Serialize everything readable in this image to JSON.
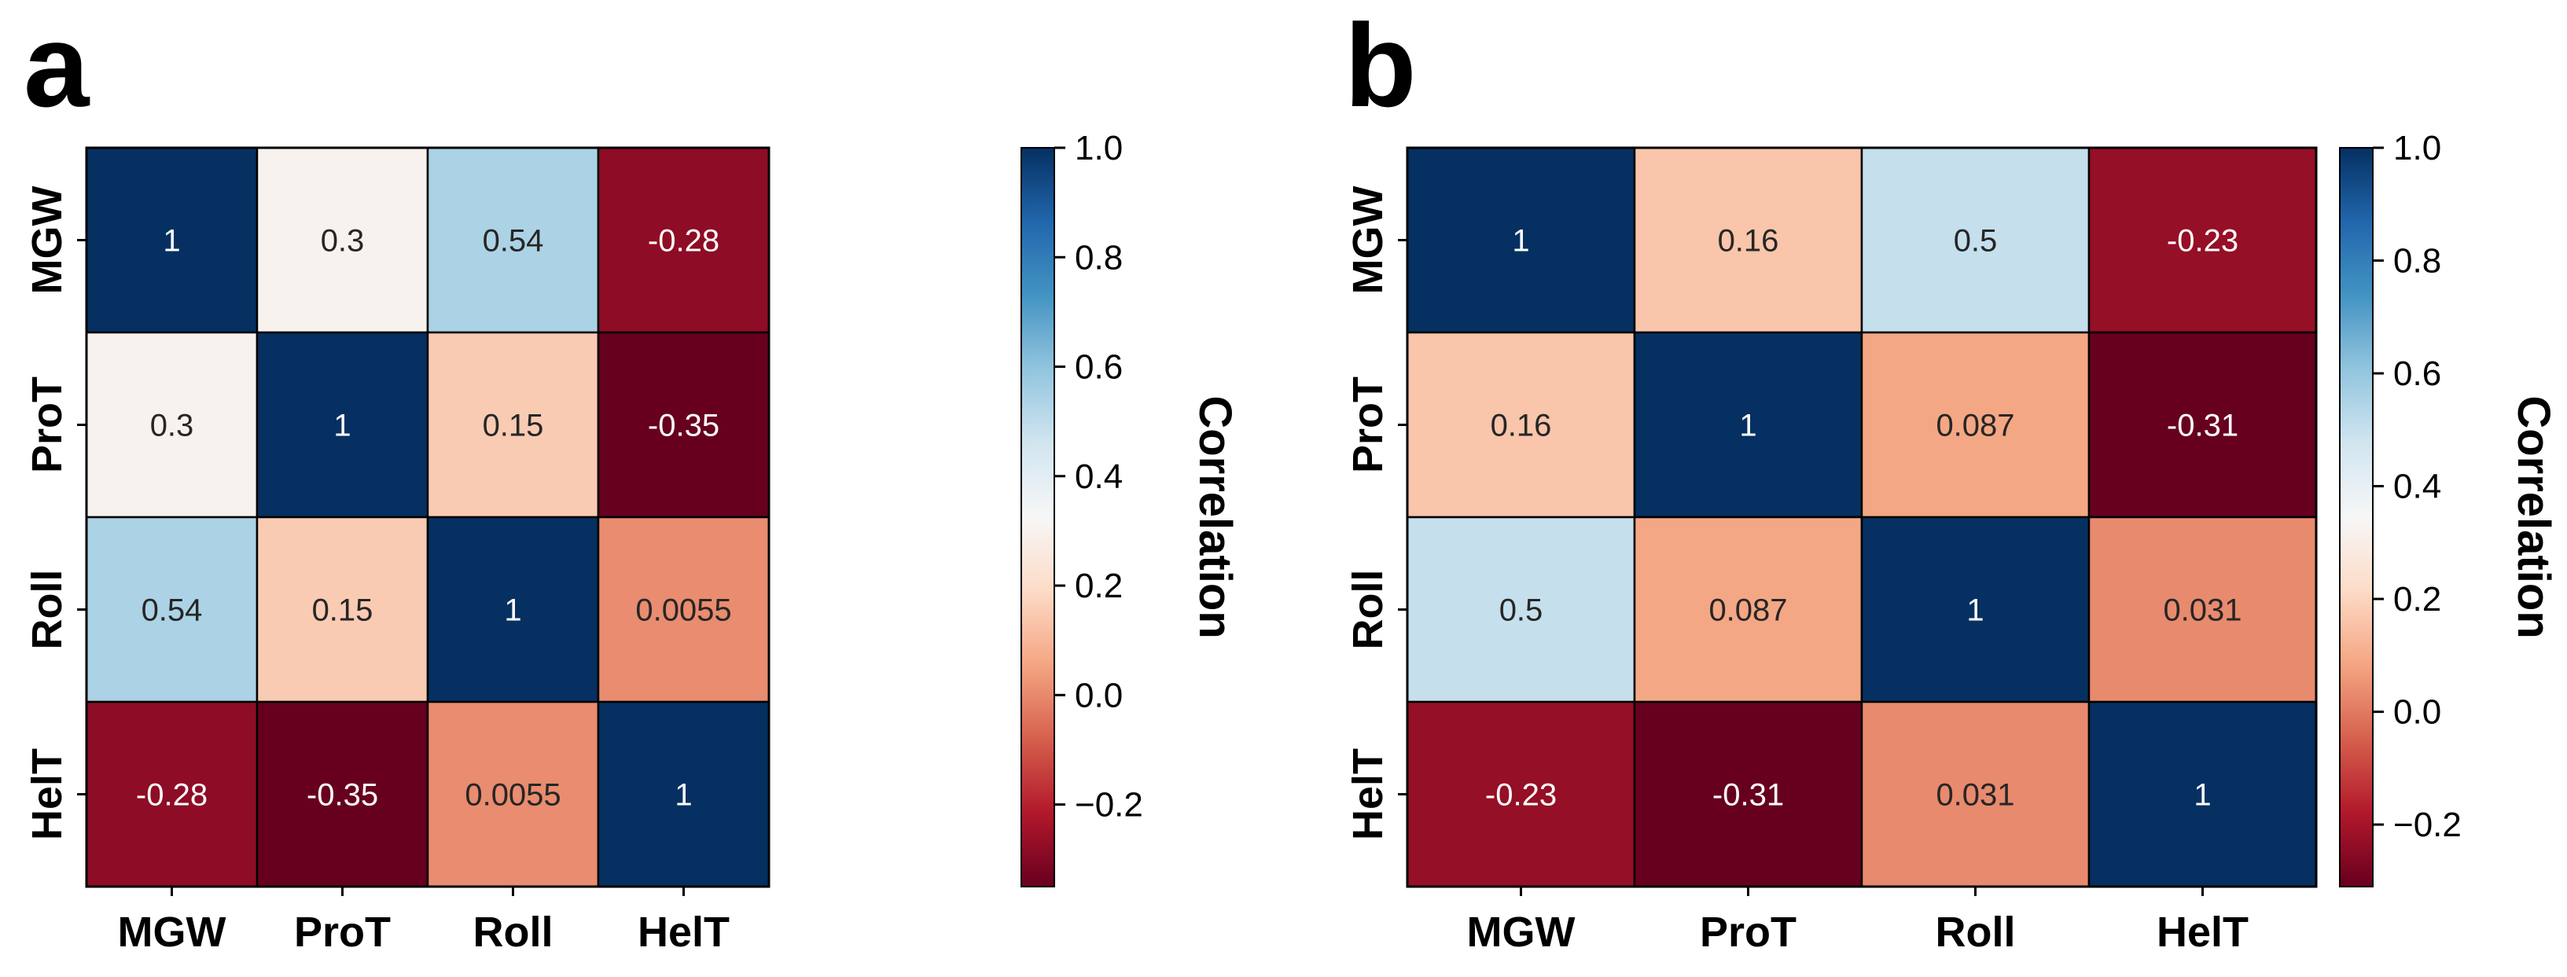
{
  "chart_data": [
    {
      "type": "heatmap",
      "panel_label": "a",
      "x_categories": [
        "MGW",
        "ProT",
        "Roll",
        "HelT"
      ],
      "y_categories": [
        "MGW",
        "ProT",
        "Roll",
        "HelT"
      ],
      "values": [
        [
          1,
          0.3,
          0.54,
          -0.28
        ],
        [
          0.3,
          1,
          0.15,
          -0.35
        ],
        [
          0.54,
          0.15,
          1,
          0.0055
        ],
        [
          -0.28,
          -0.35,
          0.0055,
          1
        ]
      ],
      "cell_labels": [
        [
          "1",
          "0.3",
          "0.54",
          "-0.28"
        ],
        [
          "0.3",
          "1",
          "0.15",
          "-0.35"
        ],
        [
          "0.54",
          "0.15",
          "1",
          "0.0055"
        ],
        [
          "-0.28",
          "-0.35",
          "0.0055",
          "1"
        ]
      ],
      "colorbar": {
        "label": "Correlation",
        "range": [
          -0.35,
          1.0
        ],
        "colormap": "RdBu",
        "ticks": [
          -0.2,
          0.0,
          0.2,
          0.4,
          0.6,
          0.8,
          1.0
        ],
        "tick_labels": [
          "−0.2",
          "0.0",
          "0.2",
          "0.4",
          "0.6",
          "0.8",
          "1.0"
        ]
      }
    },
    {
      "type": "heatmap",
      "panel_label": "b",
      "x_categories": [
        "MGW",
        "ProT",
        "Roll",
        "HelT"
      ],
      "y_categories": [
        "MGW",
        "ProT",
        "Roll",
        "HelT"
      ],
      "values": [
        [
          1,
          0.16,
          0.5,
          -0.23
        ],
        [
          0.16,
          1,
          0.087,
          -0.31
        ],
        [
          0.5,
          0.087,
          1,
          0.031
        ],
        [
          -0.23,
          -0.31,
          0.031,
          1
        ]
      ],
      "cell_labels": [
        [
          "1",
          "0.16",
          "0.5",
          "-0.23"
        ],
        [
          "0.16",
          "1",
          "0.087",
          "-0.31"
        ],
        [
          "0.5",
          "0.087",
          "1",
          "0.031"
        ],
        [
          "-0.23",
          "-0.31",
          "0.031",
          "1"
        ]
      ],
      "colorbar": {
        "label": "Correlation",
        "range": [
          -0.31,
          1.0
        ],
        "colormap": "RdBu",
        "ticks": [
          -0.2,
          0.0,
          0.2,
          0.4,
          0.6,
          0.8,
          1.0
        ],
        "tick_labels": [
          "−0.2",
          "0.0",
          "0.2",
          "0.4",
          "0.6",
          "0.8",
          "1.0"
        ]
      }
    }
  ]
}
